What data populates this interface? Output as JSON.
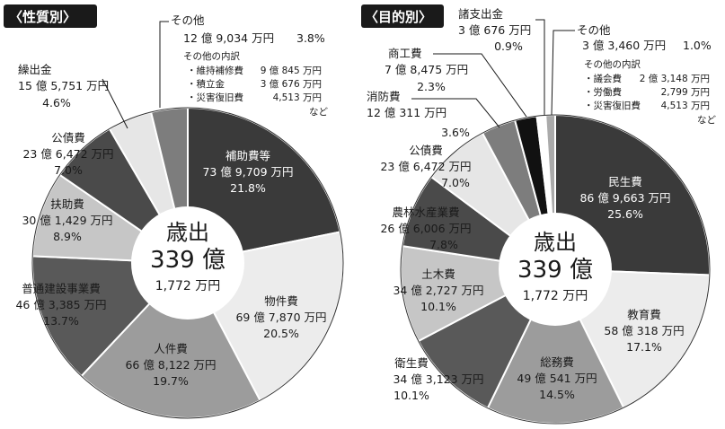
{
  "chart_data": [
    {
      "type": "pie",
      "title": "〈性質別〉",
      "center": {
        "line1": "歳出",
        "line2": "339 億",
        "line3": "1,772 万円"
      },
      "slices": [
        {
          "name": "補助費等",
          "amount": "73 億 9,709 万円",
          "percent": 21.8,
          "percent_label": "21.8%",
          "color": "#3a3a3a"
        },
        {
          "name": "物件費",
          "amount": "69 億 7,870 万円",
          "percent": 20.5,
          "percent_label": "20.5%",
          "color": "#ececec"
        },
        {
          "name": "人件費",
          "amount": "66 億 8,122 万円",
          "percent": 19.7,
          "percent_label": "19.7%",
          "color": "#9c9c9c"
        },
        {
          "name": "普通建設事業費",
          "amount": "46 億 3,385 万円",
          "percent": 13.7,
          "percent_label": "13.7%",
          "color": "#595959"
        },
        {
          "name": "扶助費",
          "amount": "30 億 1,429 万円",
          "percent": 8.9,
          "percent_label": "8.9%",
          "color": "#c6c6c6"
        },
        {
          "name": "公債費",
          "amount": "23 億 6,472 万円",
          "percent": 7.0,
          "percent_label": "7.0%",
          "color": "#4a4a4a"
        },
        {
          "name": "繰出金",
          "amount": "15 億 5,751 万円",
          "percent": 4.6,
          "percent_label": "4.6%",
          "color": "#e6e6e6"
        },
        {
          "name": "その他",
          "amount": "12 億 9,034 万円",
          "percent": 3.8,
          "percent_label": "3.8%",
          "color": "#7d7d7d"
        }
      ],
      "other_breakdown": {
        "title": "その他の内訳",
        "items": [
          {
            "name": "・維持補修費",
            "amount": "9 億 845 万円"
          },
          {
            "name": "・積立金",
            "amount": "3 億 676 万円"
          },
          {
            "name": "・災害復旧費",
            "amount": "4,513 万円"
          }
        ],
        "suffix": "など"
      }
    },
    {
      "type": "pie",
      "title": "〈目的別〉",
      "center": {
        "line1": "歳出",
        "line2": "339 億",
        "line3": "1,772 万円"
      },
      "slices": [
        {
          "name": "民生費",
          "amount": "86 億 9,663 万円",
          "percent": 25.6,
          "percent_label": "25.6%",
          "color": "#3a3a3a"
        },
        {
          "name": "教育費",
          "amount": "58 億 318 万円",
          "percent": 17.1,
          "percent_label": "17.1%",
          "color": "#ececec"
        },
        {
          "name": "総務費",
          "amount": "49 億 541 万円",
          "percent": 14.5,
          "percent_label": "14.5%",
          "color": "#9c9c9c"
        },
        {
          "name": "衛生費",
          "amount": "34 億 3,123 万円",
          "percent": 10.1,
          "percent_label": "10.1%",
          "color": "#595959"
        },
        {
          "name": "土木費",
          "amount": "34 億 2,727 万円",
          "percent": 10.1,
          "percent_label": "10.1%",
          "color": "#c6c6c6"
        },
        {
          "name": "農林水産業費",
          "amount": "26 億 6,006 万円",
          "percent": 7.8,
          "percent_label": "7.8%",
          "color": "#4a4a4a"
        },
        {
          "name": "公債費",
          "amount": "23 億 6,472 万円",
          "percent": 7.0,
          "percent_label": "7.0%",
          "color": "#e6e6e6"
        },
        {
          "name": "消防費",
          "amount": "12 億 311 万円",
          "percent": 3.6,
          "percent_label": "3.6%",
          "color": "#7d7d7d"
        },
        {
          "name": "商工費",
          "amount": "7 億 8,475 万円",
          "percent": 2.3,
          "percent_label": "2.3%",
          "color": "#111111"
        },
        {
          "name": "諸支出金",
          "amount": "3 億 676 万円",
          "percent": 0.9,
          "percent_label": "0.9%",
          "color": "#ffffff"
        },
        {
          "name": "その他",
          "amount": "3 億 3,460 万円",
          "percent": 1.0,
          "percent_label": "1.0%",
          "color": "#aaaaaa"
        }
      ],
      "other_breakdown": {
        "title": "その他の内訳",
        "items": [
          {
            "name": "・議会費",
            "amount": "2 億 3,148 万円"
          },
          {
            "name": "・労働費",
            "amount": "2,799 万円"
          },
          {
            "name": "・災害復旧費",
            "amount": "4,513 万円"
          }
        ],
        "suffix": "など"
      }
    }
  ]
}
